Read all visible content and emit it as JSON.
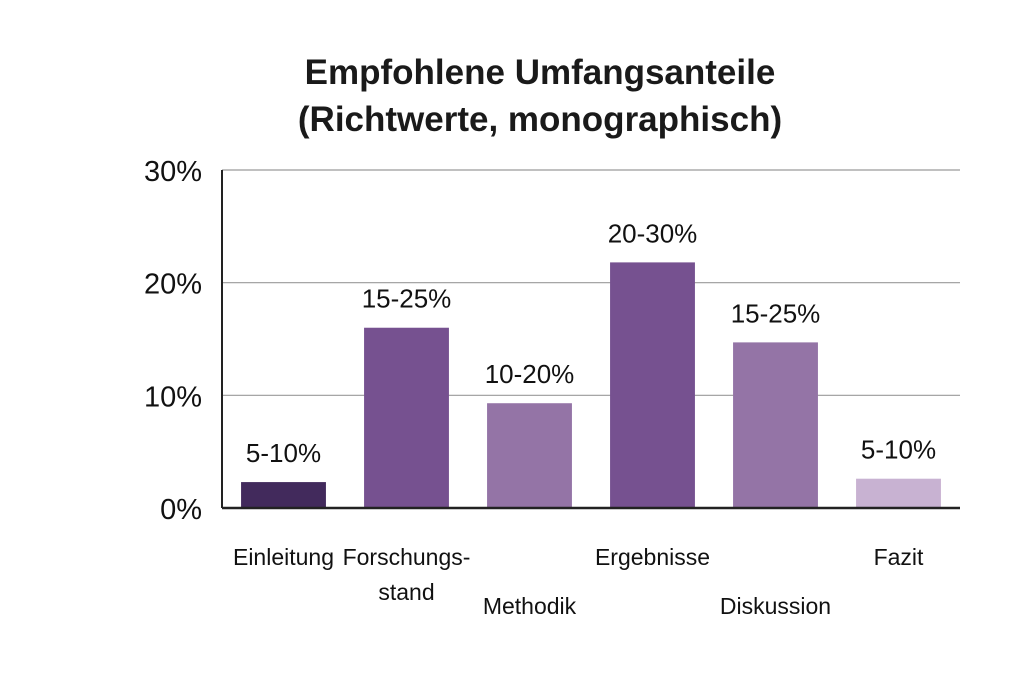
{
  "chart_data": {
    "type": "bar",
    "title": [
      "Empfohlene Umfangsanteile",
      "(Richtwerte, monographisch)"
    ],
    "xlabel": "",
    "ylabel": "",
    "ylim": [
      0,
      30
    ],
    "yticks": [
      {
        "value": 0,
        "label": "0%"
      },
      {
        "value": 10,
        "label": "10%"
      },
      {
        "value": 20,
        "label": "20%"
      },
      {
        "value": 30,
        "label": "30%"
      }
    ],
    "grid": true,
    "categories": [
      {
        "lines": [
          "Einleitung"
        ],
        "row": "upper"
      },
      {
        "lines": [
          "Forschungs-",
          "stand"
        ],
        "row": "upper"
      },
      {
        "lines": [
          "Methodik"
        ],
        "row": "lower"
      },
      {
        "lines": [
          "Ergebnisse"
        ],
        "row": "upper"
      },
      {
        "lines": [
          "Diskussion"
        ],
        "row": "lower"
      },
      {
        "lines": [
          "Fazit"
        ],
        "row": "upper"
      }
    ],
    "values": [
      2.3,
      16,
      9.3,
      21.8,
      14.7,
      2.6
    ],
    "data_labels": [
      "5-10%",
      "15-25%",
      "10-20%",
      "20-30%",
      "15-25%",
      "5-10%"
    ],
    "colors": [
      "#422a5c",
      "#765190",
      "#9474a6",
      "#765190",
      "#9474a6",
      "#c8b2d2"
    ]
  }
}
